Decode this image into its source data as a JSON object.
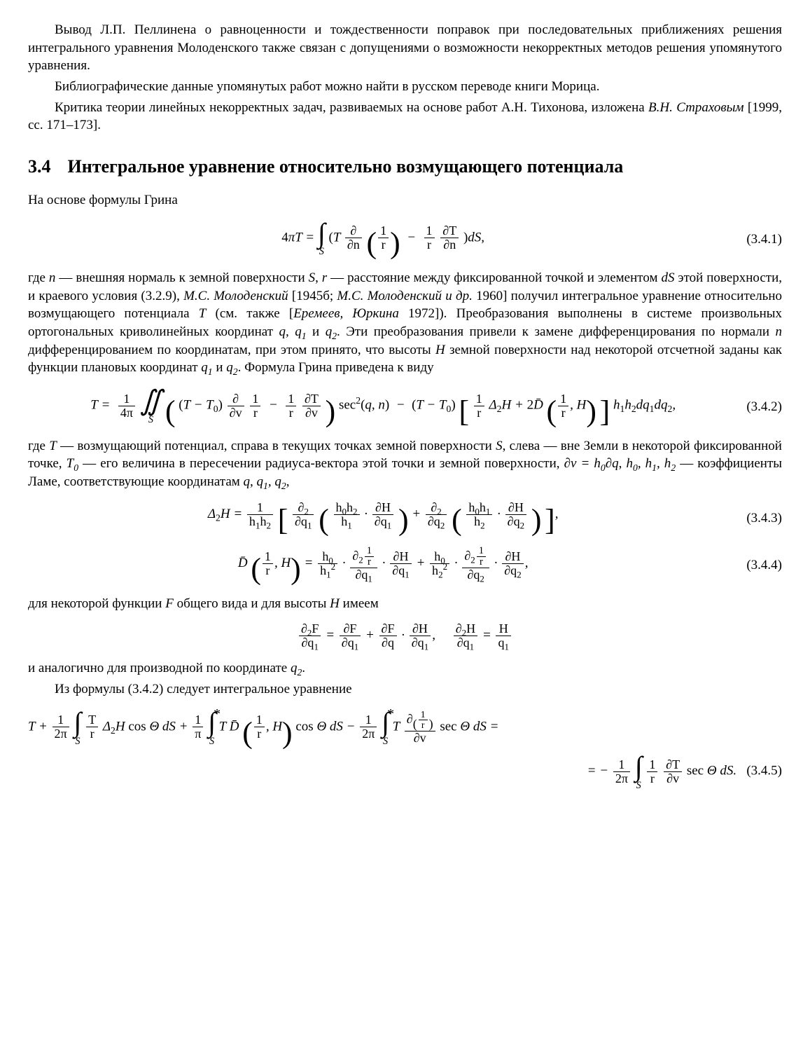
{
  "para1": "Вывод Л.П. Пеллинена о равноценности и тождественности поправок при последовательных приближениях решения интегрального уравнения Молоденского также связан с допущениями о возможности некорректных методов решения упомянутого уравнения.",
  "para2": "Библиографические данные упомянутых работ можно найти в русском переводе книги Морица.",
  "para3a": "Критика теории линейных некорректных задач, развиваемых на основе работ А.Н. Тихонова, изложена ",
  "para3b": "В.Н. Страховым",
  "para3c": " [1999, сс. 171–173].",
  "section_num": "3.4",
  "section_title": "Интегральное уравнение относительно возмущающего потенциала",
  "para4": "На основе формулы Грина",
  "eq341_num": "(3.4.1)",
  "para5a": "где ",
  "para5_n": "n",
  "para5b": " — внешняя нормаль к земной поверхности ",
  "para5_S": "S",
  "para5c": ", ",
  "para5_r": "r",
  "para5d": " — расстояние между фиксированной точкой и элементом ",
  "para5_dS": "dS",
  "para5e": " этой поверхности, и краевого условия (3.2.9), ",
  "para5_ref1": "М.С. Молоденский",
  "para5f": " [1945б; ",
  "para5_ref2": "М.С. Молоденский и др.",
  "para5g": " 1960] получил интегральное уравнение относительно возмущающего потенциала ",
  "para5_T": "T",
  "para5h": " (см. также [",
  "para5_ref3": "Еремеев, Юркина",
  "para5i": " 1972]). Преобразования выполнены в системе произвольных ортогональных криволинейных координат ",
  "para5_q": "q, q",
  "para5_q1sub": "1",
  "para5j": " и ",
  "para5_q2": "q",
  "para5_q2sub": "2",
  "para5k": ". Эти преобразования привели к замене дифференцирования по нормали ",
  "para5_n2": "n",
  "para5l": " дифференцированием по координатам, при этом принято, что высоты ",
  "para5_H": "H",
  "para5m": " земной поверхности над некоторой отсчетной заданы как функции плановых координат ",
  "para5_q1b": "q",
  "para5_q1bsub": "1",
  "para5n": " и ",
  "para5_q2b": "q",
  "para5_q2bsub": "2",
  "para5o": ". Формула Грина приведена к виду",
  "eq342_num": "(3.4.2)",
  "para6a": "где ",
  "para6_T": "T",
  "para6b": " — возмущающий потенциал, справа в текущих точках земной поверхности ",
  "para6_S": "S",
  "para6c": ", слева — вне Земли в некоторой фиксированной точке, ",
  "para6_T0": "T",
  "para6_T0sub": "0",
  "para6d": " — его величина в пересечении радиуса-вектора этой точки и земной поверхности, ",
  "para6_dv": "∂v = h",
  "para6_h0sub": "0",
  "para6_dv2": "∂q",
  "para6e": ", ",
  "para6_h": "h",
  "para6_h0sub2": "0",
  "para6_h1": ", h",
  "para6_h1sub": "1",
  "para6_h2": ", h",
  "para6_h2sub": "2",
  "para6f": " — коэффициенты Ламе, соответствующие координатам ",
  "para6_coords": "q, q",
  "para6_c1sub": "1",
  "para6_coords2": ", q",
  "para6_c2sub": "2",
  "para6g": ",",
  "eq343_num": "(3.4.3)",
  "eq344_num": "(3.4.4)",
  "para7a": "для некоторой функции ",
  "para7_F": "F",
  "para7b": " общего вида и для высоты ",
  "para7_H": "H",
  "para7c": " имеем",
  "para8a": "и аналогично для производной по координате ",
  "para8_q2": "q",
  "para8_q2sub": "2",
  "para8b": ".",
  "para9": "Из формулы (3.4.2) следует интегральное уравнение",
  "eq345_num": "(3.4.5)"
}
